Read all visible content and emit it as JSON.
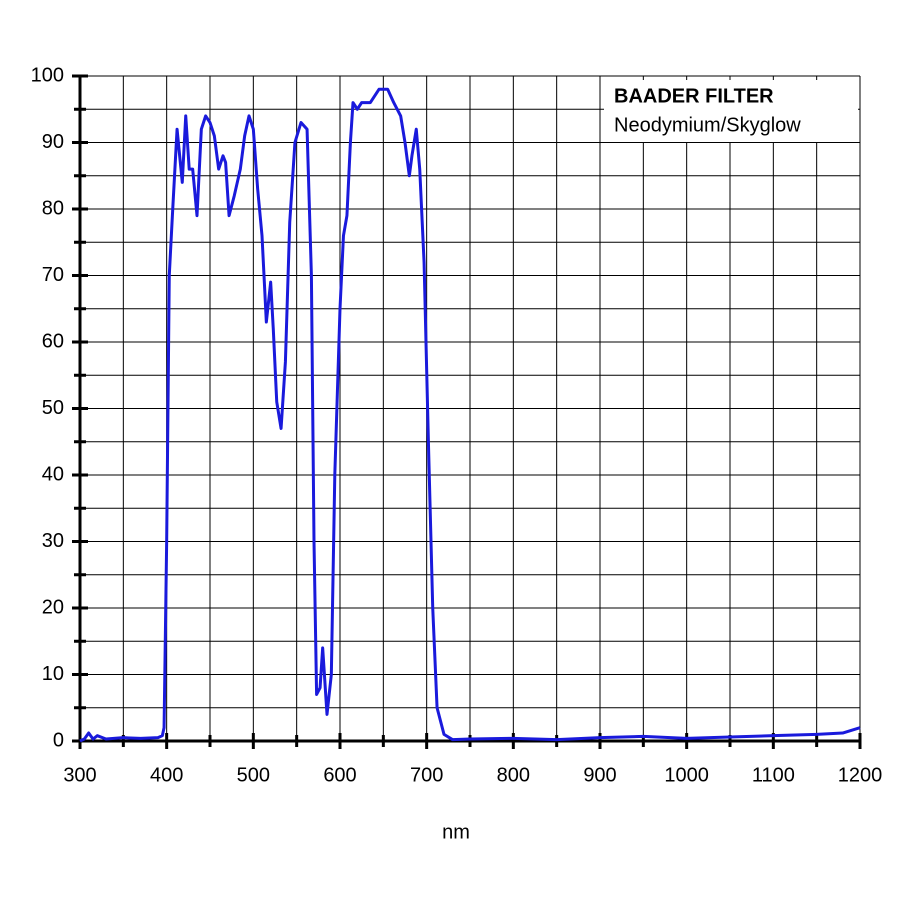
{
  "chart_data": {
    "type": "line",
    "annotation_title": "BAADER FILTER",
    "annotation_subtitle": "Neodymium/Skyglow",
    "x_label": "nm",
    "series": [
      {
        "color": "#1a1adc",
        "x": [
          300,
          305,
          310,
          315,
          320,
          330,
          350,
          370,
          390,
          395,
          397,
          400,
          403,
          407,
          412,
          415,
          418,
          422,
          426,
          430,
          435,
          440,
          445,
          450,
          455,
          460,
          465,
          468,
          472,
          478,
          485,
          490,
          495,
          500,
          505,
          510,
          515,
          520,
          523,
          527,
          532,
          537,
          542,
          548,
          555,
          562,
          567,
          570,
          573,
          577,
          580,
          585,
          590,
          594,
          600,
          604,
          608,
          612,
          615,
          620,
          625,
          635,
          645,
          655,
          662,
          670,
          675,
          680,
          683,
          688,
          692,
          697,
          702,
          707,
          712,
          720,
          730,
          750,
          800,
          850,
          900,
          950,
          1000,
          1050,
          1100,
          1150,
          1180,
          1200
        ],
        "values": [
          0,
          0.3,
          1.2,
          0.3,
          0.8,
          0.3,
          0.5,
          0.4,
          0.5,
          0.8,
          2,
          30,
          70,
          80,
          92,
          88,
          84,
          94,
          86,
          86,
          79,
          92,
          94,
          93,
          91,
          86,
          88,
          87,
          79,
          82,
          86,
          91,
          94,
          92,
          83,
          76,
          63,
          69,
          62,
          51,
          47,
          57,
          78,
          90,
          93,
          92,
          70,
          30,
          7,
          8,
          14,
          4,
          10,
          40,
          65,
          76,
          79,
          90,
          96,
          95,
          96,
          96,
          98,
          98,
          96,
          94,
          90,
          85,
          88,
          92,
          86,
          72,
          45,
          20,
          5,
          1,
          0.2,
          0.3,
          0.4,
          0.2,
          0.5,
          0.7,
          0.4,
          0.6,
          0.8,
          1,
          1.2,
          2
        ]
      }
    ],
    "xlim": [
      300,
      1200
    ],
    "xticks": [
      300,
      400,
      500,
      600,
      700,
      800,
      900,
      1000,
      1100,
      1200
    ],
    "x_minor_ticks": [
      350,
      450,
      550,
      650,
      750,
      850,
      950,
      1050,
      1150
    ],
    "ylim": [
      0,
      100
    ],
    "yticks": [
      0,
      10,
      20,
      30,
      40,
      50,
      60,
      70,
      80,
      90,
      100
    ],
    "y_minor_ticks": [
      5,
      15,
      25,
      35,
      45,
      55,
      65,
      75,
      85,
      95
    ],
    "grid": true
  }
}
